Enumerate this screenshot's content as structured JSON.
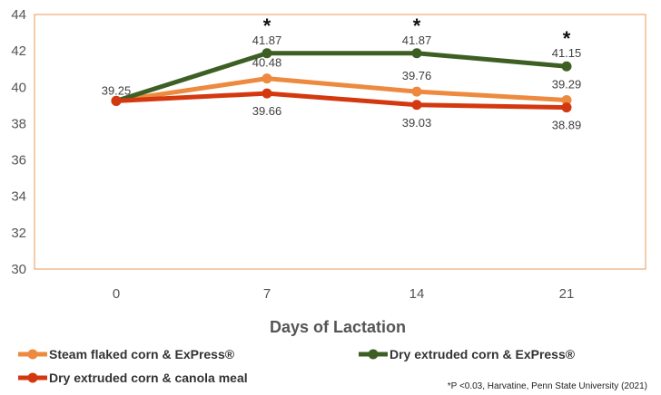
{
  "chart_data": {
    "type": "line",
    "x": [
      "0",
      "7",
      "14",
      "21"
    ],
    "xlabel": "Days of Lactation",
    "ylabel": "",
    "ylim": [
      30,
      44
    ],
    "yticks": [
      "30",
      "32",
      "34",
      "36",
      "38",
      "40",
      "42",
      "44"
    ],
    "grid": false,
    "legend_position": "bottom",
    "series": [
      {
        "name": "Steam flaked corn & ExPress®",
        "color": "#ED8A3F",
        "values": [
          39.25,
          40.48,
          39.76,
          39.29
        ],
        "labels": [
          "39.25",
          "40.48",
          "39.76",
          "39.29"
        ]
      },
      {
        "name": "Dry extruded corn & ExPress®",
        "color": "#3E5F24",
        "values": [
          39.25,
          41.87,
          41.87,
          41.15
        ],
        "labels": [
          "",
          "41.87",
          "41.87",
          "41.15"
        ]
      },
      {
        "name": "Dry extruded corn & canola meal",
        "color": "#D4380F",
        "values": [
          39.25,
          39.66,
          39.03,
          38.89
        ],
        "labels": [
          "",
          "39.66",
          "39.03",
          "38.89"
        ]
      }
    ],
    "significance_marker": "*",
    "significant_x": [
      "7",
      "14",
      "21"
    ],
    "footnote": "*P <0.03, Harvatine, Penn State University (2021)"
  }
}
